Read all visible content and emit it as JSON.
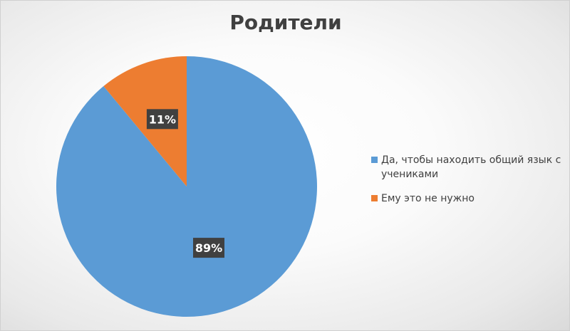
{
  "chart_data": {
    "type": "pie",
    "title": "Родители",
    "slices": [
      {
        "label": "Да, чтобы находить общий язык с учениками",
        "value": 89,
        "data_label": "89%",
        "color": "#5b9bd5"
      },
      {
        "label": "Ему это не нужно",
        "value": 11,
        "data_label": "11%",
        "color": "#ed7d31"
      }
    ],
    "legend_position": "right",
    "data_label_background": "#404040",
    "data_label_color": "#ffffff"
  }
}
